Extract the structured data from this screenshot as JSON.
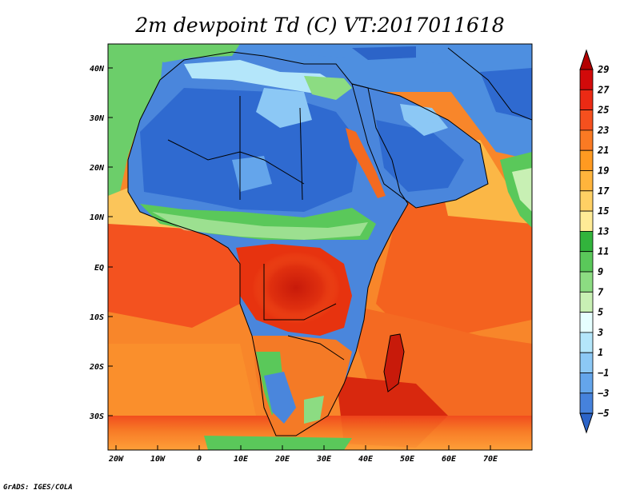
{
  "title": "2m dewpoint Td (C) VT:2017011618",
  "credit": "GrADS: IGES/COLA",
  "map": {
    "lat_ticks": [
      "40N",
      "30N",
      "20N",
      "10N",
      "EQ",
      "10S",
      "20S",
      "30S"
    ],
    "lon_ticks": [
      "20W",
      "10W",
      "0",
      "10E",
      "20E",
      "30E",
      "40E",
      "50E",
      "60E",
      "70E"
    ],
    "extent": {
      "lon": [
        -20,
        80
      ],
      "lat": [
        -35,
        45
      ]
    }
  },
  "colorbar": {
    "labels": [
      "29",
      "27",
      "25",
      "23",
      "21",
      "19",
      "17",
      "15",
      "13",
      "11",
      "9",
      "7",
      "5",
      "3",
      "1",
      "−1",
      "−3",
      "−5"
    ],
    "colors": [
      "#b40000",
      "#d20a0a",
      "#eb2a14",
      "#f5501e",
      "#fa7a23",
      "#ff9a21",
      "#ffb43c",
      "#ffd064",
      "#ffeb96",
      "#32b43c",
      "#5ac85a",
      "#8cdc82",
      "#c8f0b4",
      "#e6ffff",
      "#b4e6fa",
      "#8cc8f5",
      "#64a5eb",
      "#4682dc",
      "#2c64c8"
    ]
  }
}
